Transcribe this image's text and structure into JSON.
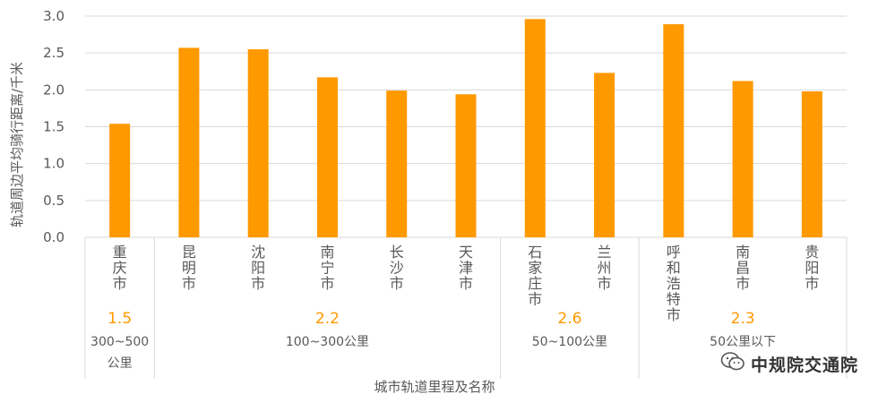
{
  "chart_data": {
    "type": "bar",
    "ylabel": "轨道周边平均骑行距离/千米",
    "xlabel": "城市轨道里程及名称",
    "ylim": [
      0,
      3.0
    ],
    "yticks": [
      "0.0",
      "0.5",
      "1.0",
      "1.5",
      "2.0",
      "2.5",
      "3.0"
    ],
    "grid": true,
    "colors": {
      "bar": "#FF9900",
      "group_value": "#FF9900",
      "grid": "#D9D9D9",
      "text": "#595959"
    },
    "categories": [
      "重庆市",
      "昆明市",
      "沈阳市",
      "南宁市",
      "长沙市",
      "天津市",
      "石家庄市",
      "兰州市",
      "呼和浩特市",
      "南昌市",
      "贵阳市"
    ],
    "values": [
      1.54,
      2.57,
      2.55,
      2.17,
      1.99,
      1.94,
      2.96,
      2.23,
      2.89,
      2.12,
      1.98
    ],
    "groups": [
      {
        "value": "1.5",
        "range": "300~500公里"
      },
      {
        "value": "2.2",
        "range": "100~300公里"
      },
      {
        "value": "2.6",
        "range": "50~100公里"
      },
      {
        "value": "2.3",
        "range": "50公里以下"
      }
    ]
  },
  "watermark": {
    "text": "中规院交通院",
    "icon": "wechat-icon"
  }
}
